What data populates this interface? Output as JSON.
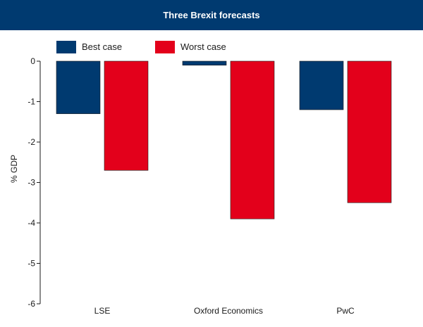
{
  "chart_data": {
    "type": "bar",
    "title": "Three Brexit forecasts",
    "ylabel": "% GDP",
    "xlabel": "",
    "ylim": [
      -6,
      0
    ],
    "yticks": [
      0,
      -1,
      -2,
      -3,
      -4,
      -5,
      -6
    ],
    "grid": false,
    "legend_position": "top",
    "categories": [
      "LSE",
      "Oxford Economics",
      "PwC"
    ],
    "series": [
      {
        "name": "Best case",
        "color": "#003a70",
        "values": [
          -1.3,
          -0.1,
          -1.2
        ]
      },
      {
        "name": "Worst case",
        "color": "#e3001b",
        "values": [
          -2.7,
          -3.9,
          -3.5
        ]
      }
    ]
  }
}
